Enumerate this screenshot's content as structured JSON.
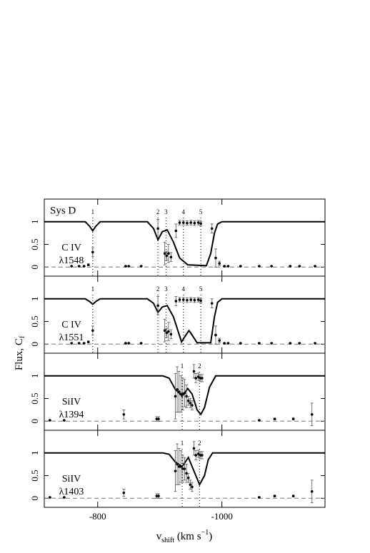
{
  "chart_data": [
    {
      "type": "line",
      "title": "Sys D",
      "label": [
        "C IV",
        "λ1548"
      ],
      "ylabel": [
        "Flux, C",
        "f"
      ],
      "xlim": [
        -714,
        -1166
      ],
      "xticks": [
        -800,
        -1000
      ],
      "ylim": [
        -0.2,
        1.5
      ],
      "yticks": [
        0,
        0.5,
        1
      ],
      "hline": 0,
      "x": [
        -714,
        -780,
        -787,
        -792,
        -797,
        -804,
        -880,
        -890,
        -897,
        -904,
        -912,
        -922,
        -932,
        -945,
        -975,
        -982,
        -988,
        -993,
        -1000,
        -1166
      ],
      "values": [
        1,
        1,
        0.9,
        0.8,
        0.9,
        1,
        1,
        0.85,
        0.6,
        0.78,
        0.82,
        0.55,
        0.2,
        0.05,
        0.03,
        0.3,
        0.75,
        0.95,
        1,
        1
      ],
      "points": {
        "x": [
          -758,
          -770,
          -778,
          -785,
          -792,
          -845,
          -850,
          -870,
          -897,
          -908,
          -911,
          -914,
          -918,
          -926,
          -932,
          -938,
          -944,
          -950,
          -956,
          -962,
          -966,
          -984,
          -990,
          -996,
          -1004,
          -1010,
          -1030,
          -1060,
          -1080,
          -1110,
          -1125,
          -1150
        ],
        "values": [
          0.02,
          0.02,
          0.02,
          0.05,
          0.33,
          0.02,
          0.02,
          0.02,
          0.85,
          0.3,
          0.25,
          0.3,
          0.22,
          0.8,
          0.98,
          0.98,
          0.97,
          0.98,
          0.97,
          0.98,
          0.96,
          0.85,
          0.2,
          0.08,
          0.02,
          0.02,
          0.02,
          0.02,
          0.02,
          0.02,
          0.02,
          0.02
        ],
        "errors": [
          0.01,
          0.01,
          0.01,
          0.02,
          0.1,
          0.01,
          0.01,
          0.01,
          0.2,
          0.25,
          0.1,
          0.2,
          0.1,
          0.15,
          0.05,
          0.05,
          0.05,
          0.05,
          0.05,
          0.05,
          0.05,
          0.1,
          0.2,
          0.05,
          0.01,
          0.01,
          0.01,
          0.01,
          0.01,
          0.01,
          0.01,
          0.01
        ]
      },
      "components": {
        "x": [
          -792,
          -897,
          -910,
          -938,
          -966
        ],
        "labels": [
          "1",
          "2",
          "3",
          "4",
          "5"
        ]
      }
    },
    {
      "type": "line",
      "label": [
        "C IV",
        "λ1551"
      ],
      "xlim": [
        -714,
        -1166
      ],
      "xticks": [
        -800,
        -1000
      ],
      "ylim": [
        -0.2,
        1.5
      ],
      "yticks": [
        0,
        0.5,
        1
      ],
      "hline": 0,
      "x": [
        -714,
        -780,
        -787,
        -792,
        -797,
        -804,
        -880,
        -890,
        -897,
        -904,
        -912,
        -922,
        -935,
        -942,
        -947,
        -952,
        -960,
        -982,
        -988,
        -993,
        -1000,
        -1166
      ],
      "values": [
        1,
        1,
        0.94,
        0.88,
        0.94,
        1,
        1,
        0.9,
        0.7,
        0.82,
        0.85,
        0.6,
        0.05,
        0.2,
        0.3,
        0.2,
        0.03,
        0.03,
        0.6,
        0.92,
        1,
        1
      ],
      "points": {
        "x": [
          -758,
          -770,
          -778,
          -785,
          -792,
          -845,
          -850,
          -870,
          -897,
          -908,
          -911,
          -914,
          -918,
          -926,
          -932,
          -938,
          -944,
          -950,
          -956,
          -962,
          -966,
          -984,
          -990,
          -996,
          -1004,
          -1010,
          -1030,
          -1060,
          -1080,
          -1110,
          -1125,
          -1150
        ],
        "values": [
          0.02,
          0.02,
          0.02,
          0.05,
          0.3,
          0.02,
          0.02,
          0.02,
          0.85,
          0.3,
          0.25,
          0.28,
          0.22,
          0.95,
          0.98,
          0.98,
          0.97,
          0.98,
          0.97,
          0.98,
          0.96,
          0.9,
          0.2,
          0.08,
          0.02,
          0.02,
          0.02,
          0.02,
          0.02,
          0.02,
          0.02,
          0.02
        ],
        "errors": [
          0.01,
          0.01,
          0.01,
          0.02,
          0.1,
          0.01,
          0.01,
          0.01,
          0.2,
          0.25,
          0.1,
          0.2,
          0.1,
          0.1,
          0.05,
          0.05,
          0.05,
          0.05,
          0.05,
          0.05,
          0.05,
          0.1,
          0.2,
          0.05,
          0.01,
          0.01,
          0.01,
          0.01,
          0.01,
          0.01,
          0.01,
          0.01
        ]
      },
      "components": {
        "x": [
          -792,
          -897,
          -910,
          -938,
          -966
        ],
        "labels": [
          "1",
          "2",
          "3",
          "4",
          "5"
        ]
      }
    },
    {
      "type": "line",
      "label": [
        "SiIV",
        "λ1394"
      ],
      "xlim": [
        -714,
        -1166
      ],
      "xticks": [
        -800,
        -1000
      ],
      "ylim": [
        -0.2,
        1.5
      ],
      "yticks": [
        0,
        0.5,
        1
      ],
      "hline": 0,
      "x": [
        -714,
        -905,
        -915,
        -925,
        -936,
        -945,
        -952,
        -960,
        -966,
        -972,
        -980,
        -990,
        -1166
      ],
      "values": [
        1,
        1,
        0.95,
        0.7,
        0.55,
        0.72,
        0.6,
        0.25,
        0.15,
        0.3,
        0.75,
        1,
        1
      ],
      "points": {
        "x": [
          -723,
          -746,
          -842,
          -895,
          -898,
          -925,
          -928,
          -931,
          -934,
          -937,
          -940,
          -943,
          -946,
          -949,
          -952,
          -955,
          -958,
          -962,
          -965,
          -968,
          -1060,
          -1085,
          -1115,
          -1145
        ],
        "values": [
          0.02,
          0.02,
          0.15,
          0.05,
          0.05,
          0.55,
          0.7,
          0.65,
          0.6,
          0.6,
          0.62,
          0.55,
          0.45,
          0.4,
          0.35,
          1.1,
          0.95,
          0.98,
          0.95,
          0.95,
          0.02,
          0.05,
          0.05,
          0.15
        ],
        "errors": [
          0.01,
          0.01,
          0.1,
          0.05,
          0.05,
          0.5,
          0.5,
          0.45,
          0.4,
          0.35,
          0.3,
          0.25,
          0.1,
          0.1,
          0.1,
          0.15,
          0.1,
          0.08,
          0.08,
          0.08,
          0.01,
          0.02,
          0.02,
          0.25
        ]
      },
      "components": {
        "x": [
          -936,
          -964
        ],
        "labels": [
          "1",
          "2"
        ]
      }
    },
    {
      "type": "line",
      "label": [
        "SiIV",
        "λ1403"
      ],
      "xlabel": [
        "v",
        "shift",
        " (km s",
        "−1",
        ")"
      ],
      "xlim": [
        -714,
        -1166
      ],
      "xticks": [
        -800,
        -1000
      ],
      "ylim": [
        -0.2,
        1.5
      ],
      "yticks": [
        0,
        0.5,
        1
      ],
      "hline": 0,
      "x": [
        -714,
        -905,
        -915,
        -925,
        -936,
        -946,
        -955,
        -964,
        -972,
        -978,
        -985,
        -1166
      ],
      "values": [
        1,
        1,
        0.97,
        0.8,
        0.7,
        0.9,
        0.6,
        0.3,
        0.5,
        0.85,
        1,
        1
      ],
      "points": {
        "x": [
          -723,
          -746,
          -842,
          -895,
          -898,
          -925,
          -928,
          -931,
          -934,
          -937,
          -940,
          -943,
          -946,
          -949,
          -952,
          -955,
          -958,
          -962,
          -965,
          -968,
          -1060,
          -1085,
          -1115,
          -1145
        ],
        "values": [
          0.02,
          0.02,
          0.12,
          0.05,
          0.05,
          0.6,
          0.75,
          0.7,
          0.7,
          0.65,
          0.65,
          0.55,
          0.45,
          0.3,
          0.25,
          1.1,
          0.95,
          0.98,
          0.95,
          0.95,
          0.02,
          0.05,
          0.05,
          0.15
        ],
        "errors": [
          0.01,
          0.01,
          0.08,
          0.05,
          0.05,
          0.45,
          0.45,
          0.4,
          0.35,
          0.3,
          0.25,
          0.2,
          0.1,
          0.1,
          0.1,
          0.15,
          0.1,
          0.08,
          0.08,
          0.08,
          0.01,
          0.02,
          0.02,
          0.25
        ]
      },
      "components": {
        "x": [
          -936,
          -964
        ],
        "labels": [
          "1",
          "2"
        ]
      }
    }
  ]
}
